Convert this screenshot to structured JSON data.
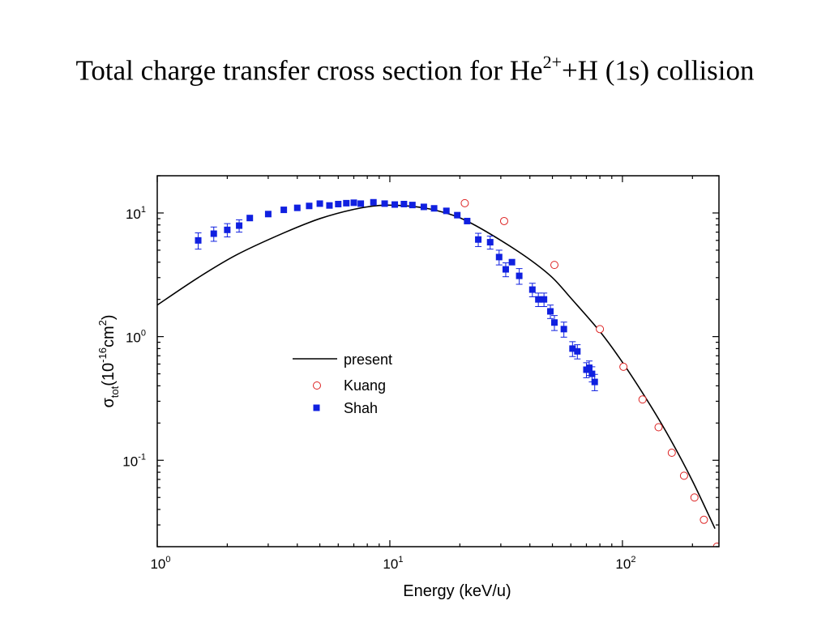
{
  "title": {
    "prefix": "Total charge transfer cross section for He",
    "superscript": "2+",
    "suffix": "+H (1s) collision"
  },
  "chart_data": {
    "type": "scatter",
    "xscale": "log",
    "yscale": "log",
    "xlim": [
      1,
      260
    ],
    "ylim": [
      0.02,
      20
    ],
    "xlabel": "Energy (keV/u)",
    "ylabel": {
      "sigma": "σ",
      "sub": "tot",
      "open": "(10",
      "exp": "-16",
      "unit": "cm",
      "unit_exp": "2",
      "close": ")"
    },
    "xticks": [
      {
        "value": 1,
        "base": "10",
        "exp": "0"
      },
      {
        "value": 10,
        "base": "10",
        "exp": "1"
      },
      {
        "value": 100,
        "base": "10",
        "exp": "2"
      }
    ],
    "yticks": [
      {
        "value": 0.1,
        "base": "10",
        "exp": "-1"
      },
      {
        "value": 1,
        "base": "10",
        "exp": "0"
      },
      {
        "value": 10,
        "base": "10",
        "exp": "1"
      }
    ],
    "legend_position": "center",
    "series": [
      {
        "name": "present",
        "kind": "line",
        "color": "#000000",
        "x": [
          1.0,
          1.5,
          2.2,
          3.5,
          5.0,
          7.0,
          9.0,
          11.0,
          14.0,
          18.0,
          22.0,
          30.0,
          40.0,
          50.0,
          60.0,
          80.0,
          100.0,
          130.0,
          160.0,
          200.0,
          250.0
        ],
        "y": [
          1.8,
          3.0,
          4.6,
          6.9,
          9.0,
          10.7,
          11.5,
          11.5,
          11.0,
          9.8,
          8.4,
          6.0,
          4.2,
          3.0,
          2.05,
          1.1,
          0.62,
          0.29,
          0.15,
          0.068,
          0.028
        ]
      },
      {
        "name": "Kuang",
        "kind": "open-circle",
        "color": "#dd2222",
        "x": [
          21,
          31,
          51,
          80,
          101,
          122,
          143,
          163,
          184,
          204,
          224,
          255
        ],
        "y": [
          12.0,
          8.6,
          3.8,
          1.15,
          0.57,
          0.31,
          0.185,
          0.115,
          0.075,
          0.05,
          0.033,
          0.02
        ]
      },
      {
        "name": "Shah",
        "kind": "filled-square",
        "color": "#1020e0",
        "x": [
          1.5,
          1.75,
          2.0,
          2.25,
          2.5,
          3.0,
          3.5,
          4.0,
          4.5,
          5.0,
          5.5,
          6.0,
          6.5,
          7.0,
          7.5,
          8.5,
          9.5,
          10.5,
          11.5,
          12.5,
          14.0,
          15.5,
          17.5,
          19.5,
          21.5,
          24.0,
          27.0,
          29.5,
          31.5,
          33.5,
          36.0,
          41.0,
          43.5,
          46.0,
          49.0,
          51.0,
          56.0,
          61.0,
          64.0,
          70.0,
          72.0,
          74.0,
          76.0
        ],
        "y": [
          6.0,
          6.8,
          7.3,
          7.9,
          9.1,
          9.8,
          10.6,
          11.0,
          11.4,
          11.9,
          11.5,
          11.8,
          12.0,
          12.1,
          11.9,
          12.2,
          11.9,
          11.7,
          11.8,
          11.6,
          11.2,
          10.9,
          10.4,
          9.6,
          8.6,
          6.1,
          5.8,
          4.4,
          3.5,
          4.0,
          3.1,
          2.4,
          2.0,
          2.0,
          1.6,
          1.3,
          1.15,
          0.8,
          0.76,
          0.54,
          0.56,
          0.5,
          0.43
        ],
        "err": [
          0.9,
          0.9,
          0.9,
          0.9,
          0,
          0,
          0,
          0,
          0,
          0,
          0,
          0,
          0,
          0,
          0,
          0,
          0,
          0,
          0,
          0,
          0,
          0,
          0,
          0,
          0,
          0.75,
          0.7,
          0.6,
          0.45,
          0,
          0.45,
          0.3,
          0.25,
          0.25,
          0.2,
          0.18,
          0.16,
          0.11,
          0.1,
          0.075,
          0.075,
          0.07,
          0.065
        ]
      }
    ]
  }
}
